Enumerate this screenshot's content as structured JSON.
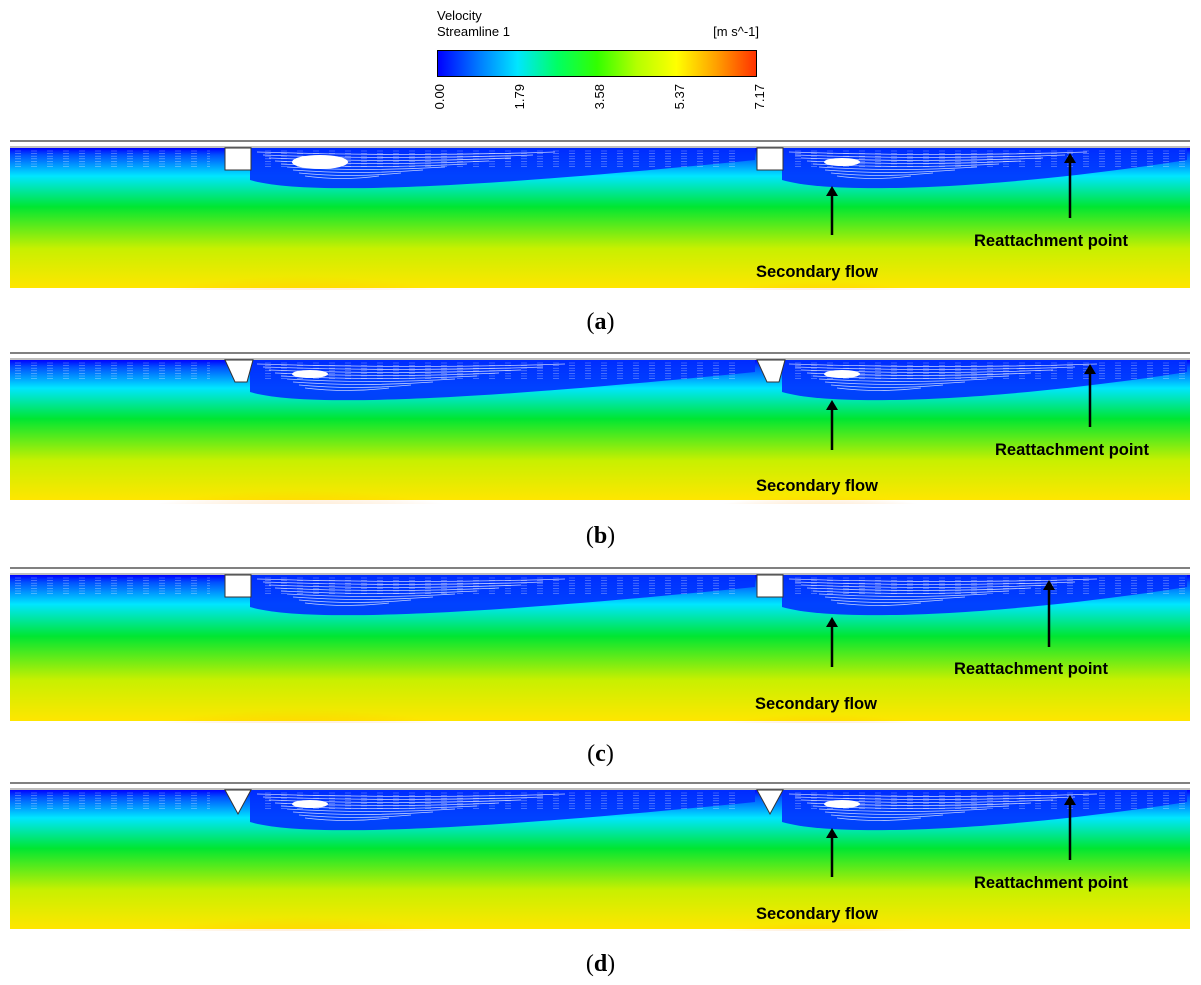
{
  "legend": {
    "title": "Velocity",
    "subtitle": "Streamline 1",
    "unit": "[m s^-1]",
    "ticks": [
      "0.00",
      "1.79",
      "3.58",
      "5.37",
      "7.17"
    ],
    "colormap": [
      "#0000ff",
      "#0078ff",
      "#00e6ff",
      "#00ff64",
      "#32ff00",
      "#b4ff00",
      "#ffff00",
      "#ffa000",
      "#ff3200"
    ]
  },
  "annotations": {
    "secondary_flow": "Secondary flow",
    "reattachment_point": "Reattachment point"
  },
  "panels": [
    {
      "id": "a",
      "caption_open": "(",
      "caption_letter": "a",
      "caption_close": ")",
      "weir_shape": "rectangular"
    },
    {
      "id": "b",
      "caption_open": "(",
      "caption_letter": "b",
      "caption_close": ")",
      "weir_shape": "trapezoidal"
    },
    {
      "id": "c",
      "caption_open": "(",
      "caption_letter": "c",
      "caption_close": ")",
      "weir_shape": "rectangular"
    },
    {
      "id": "d",
      "caption_open": "(",
      "caption_letter": "d",
      "caption_close": ")",
      "weir_shape": "triangular"
    }
  ],
  "colors": {
    "slow": "#0000ff",
    "medium": "#00e6ff",
    "mid": "#00e632",
    "fast": "#ffe600",
    "max": "#ff8c00"
  }
}
